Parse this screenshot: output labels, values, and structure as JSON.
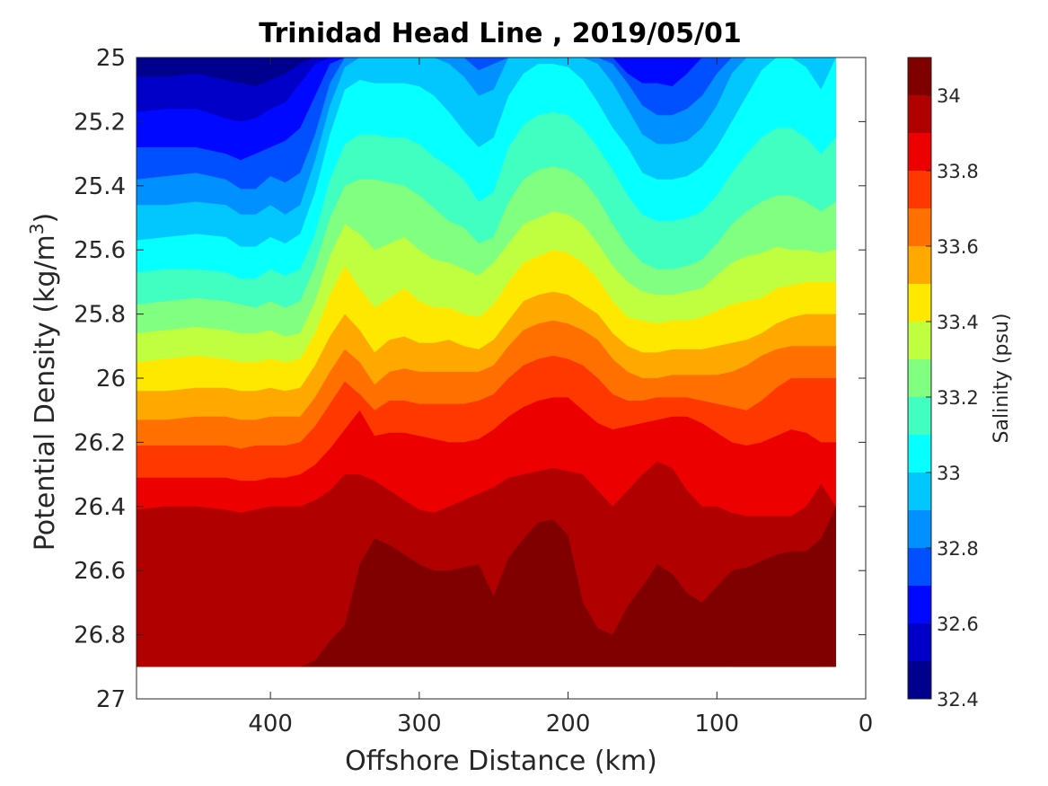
{
  "chart_data": {
    "type": "heatmap",
    "subtype": "filled-contour",
    "title": "Trinidad Head Line , 2019/05/01",
    "xlabel": "Offshore Distance (km)",
    "ylabel_main": "Potential Density (kg/m",
    "ylabel_sup": "3",
    "ylabel_close": ")",
    "xlim": [
      490,
      0
    ],
    "ylim": [
      25,
      27
    ],
    "x_ticks": [
      400,
      300,
      200,
      100,
      0
    ],
    "x_tick_labels": [
      "400",
      "300",
      "200",
      "100",
      "0"
    ],
    "y_ticks": [
      25,
      25.2,
      25.4,
      25.6,
      25.8,
      26,
      26.2,
      26.4,
      26.6,
      26.8,
      27
    ],
    "y_tick_labels": [
      "25",
      "25.2",
      "25.4",
      "25.6",
      "25.8",
      "26",
      "26.2",
      "26.4",
      "26.6",
      "26.8",
      "27"
    ],
    "colorbar": {
      "label": "Salinity (psu)",
      "levels": [
        32.4,
        32.5,
        32.6,
        32.7,
        32.8,
        32.9,
        33.0,
        33.1,
        33.2,
        33.3,
        33.4,
        33.5,
        33.6,
        33.7,
        33.8,
        33.9,
        34.0,
        34.1
      ],
      "tick_values": [
        32.4,
        32.6,
        32.8,
        33,
        33.2,
        33.4,
        33.6,
        33.8,
        34
      ],
      "tick_labels": [
        "32.4",
        "32.6",
        "32.8",
        "33",
        "33.2",
        "33.4",
        "33.6",
        "33.8",
        "34"
      ],
      "colors": [
        "#00008f",
        "#0000c8",
        "#0008ff",
        "#0050ff",
        "#0090ff",
        "#00c8ff",
        "#06ffff",
        "#40ffc0",
        "#80ff80",
        "#c0ff40",
        "#ffe800",
        "#ffa800",
        "#ff7000",
        "#ff3800",
        "#ec0000",
        "#b00000",
        "#800000"
      ]
    },
    "data_x_range": [
      490,
      20
    ],
    "data_y_bottom": 26.9,
    "distances": [
      490,
      470,
      450,
      430,
      420,
      410,
      400,
      390,
      380,
      370,
      360,
      350,
      340,
      330,
      320,
      310,
      300,
      290,
      280,
      270,
      260,
      250,
      240,
      230,
      220,
      210,
      200,
      190,
      180,
      170,
      160,
      150,
      140,
      130,
      120,
      110,
      100,
      90,
      80,
      70,
      60,
      50,
      40,
      30,
      20
    ],
    "isohalines": [
      {
        "value": 32.5,
        "density": [
          25.06,
          25.06,
          25.05,
          25.07,
          25.08,
          25.09,
          25.07,
          25.05,
          25.02,
          25.0,
          25.0,
          25.0,
          25.0,
          25.0,
          25.0,
          25.0,
          25.0,
          25.0,
          25.0,
          25.0,
          25.0,
          25.0,
          25.0,
          25.0,
          25.0,
          25.0,
          25.0,
          25.0,
          25.0,
          25.0,
          25.0,
          25.0,
          25.0,
          25.0,
          25.0,
          25.0,
          25.0,
          25.0,
          25.0,
          25.0,
          25.0,
          25.0,
          25.0,
          25.0,
          25.0
        ]
      },
      {
        "value": 32.6,
        "density": [
          25.17,
          25.16,
          25.16,
          25.19,
          25.2,
          25.19,
          25.16,
          25.14,
          25.08,
          25.02,
          25.0,
          25.0,
          25.0,
          25.0,
          25.0,
          25.0,
          25.0,
          25.0,
          25.0,
          25.0,
          25.0,
          25.0,
          25.0,
          25.0,
          25.0,
          25.0,
          25.0,
          25.0,
          25.0,
          25.0,
          25.0,
          25.0,
          25.0,
          25.0,
          25.0,
          25.0,
          25.0,
          25.0,
          25.0,
          25.0,
          25.0,
          25.0,
          25.0,
          25.0,
          25.0
        ]
      },
      {
        "value": 32.7,
        "density": [
          25.28,
          25.28,
          25.28,
          25.3,
          25.32,
          25.3,
          25.28,
          25.26,
          25.22,
          25.12,
          25.02,
          25.0,
          25.0,
          25.0,
          25.0,
          25.0,
          25.0,
          25.0,
          25.0,
          25.0,
          25.0,
          25.0,
          25.0,
          25.0,
          25.0,
          25.0,
          25.0,
          25.0,
          25.0,
          25.0,
          25.05,
          25.08,
          25.08,
          25.09,
          25.05,
          25.0,
          25.0,
          25.0,
          25.0,
          25.0,
          25.0,
          25.0,
          25.0,
          25.0,
          25.0
        ]
      },
      {
        "value": 32.8,
        "density": [
          25.38,
          25.37,
          25.36,
          25.38,
          25.41,
          25.41,
          25.37,
          25.39,
          25.36,
          25.24,
          25.08,
          25.0,
          25.0,
          25.0,
          25.0,
          25.0,
          25.0,
          25.0,
          25.0,
          25.0,
          25.04,
          25.02,
          25.0,
          25.0,
          25.0,
          25.0,
          25.0,
          25.0,
          25.0,
          25.02,
          25.08,
          25.15,
          25.18,
          25.18,
          25.16,
          25.12,
          25.05,
          25.0,
          25.0,
          25.0,
          25.0,
          25.0,
          25.0,
          25.0,
          25.0
        ]
      },
      {
        "value": 32.9,
        "density": [
          25.46,
          25.46,
          25.45,
          25.46,
          25.49,
          25.49,
          25.46,
          25.49,
          25.46,
          25.32,
          25.15,
          25.03,
          25.0,
          25.0,
          25.0,
          25.0,
          25.0,
          25.0,
          25.02,
          25.06,
          25.12,
          25.1,
          25.0,
          25.0,
          25.0,
          25.0,
          25.0,
          25.0,
          25.02,
          25.08,
          25.16,
          25.24,
          25.27,
          25.27,
          25.26,
          25.22,
          25.15,
          25.05,
          25.0,
          25.0,
          25.0,
          25.0,
          25.0,
          25.0,
          25.0
        ]
      },
      {
        "value": 33.0,
        "density": [
          25.57,
          25.56,
          25.55,
          25.56,
          25.59,
          25.59,
          25.56,
          25.58,
          25.55,
          25.42,
          25.24,
          25.1,
          25.07,
          25.08,
          25.08,
          25.08,
          25.09,
          25.12,
          25.17,
          25.23,
          25.28,
          25.25,
          25.12,
          25.05,
          25.02,
          25.02,
          25.03,
          25.07,
          25.14,
          25.22,
          25.28,
          25.36,
          25.38,
          25.38,
          25.37,
          25.34,
          25.28,
          25.2,
          25.12,
          25.04,
          25.0,
          25.0,
          25.03,
          25.1,
          25.0
        ]
      },
      {
        "value": 33.1,
        "density": [
          25.67,
          25.66,
          25.66,
          25.67,
          25.69,
          25.69,
          25.66,
          25.68,
          25.66,
          25.55,
          25.38,
          25.27,
          25.24,
          25.24,
          25.25,
          25.25,
          25.27,
          25.31,
          25.34,
          25.38,
          25.45,
          25.42,
          25.28,
          25.21,
          25.18,
          25.17,
          25.18,
          25.22,
          25.28,
          25.35,
          25.43,
          25.49,
          25.51,
          25.51,
          25.5,
          25.48,
          25.43,
          25.36,
          25.3,
          25.25,
          25.22,
          25.22,
          25.25,
          25.3,
          25.25
        ]
      },
      {
        "value": 33.2,
        "density": [
          25.77,
          25.76,
          25.75,
          25.76,
          25.77,
          25.78,
          25.76,
          25.78,
          25.76,
          25.65,
          25.5,
          25.4,
          25.38,
          25.38,
          25.39,
          25.4,
          25.43,
          25.47,
          25.51,
          25.53,
          25.58,
          25.56,
          25.45,
          25.38,
          25.35,
          25.34,
          25.35,
          25.38,
          25.44,
          25.52,
          25.59,
          25.64,
          25.66,
          25.66,
          25.65,
          25.63,
          25.58,
          25.52,
          25.48,
          25.45,
          25.43,
          25.43,
          25.45,
          25.48,
          25.45
        ]
      },
      {
        "value": 33.3,
        "density": [
          25.86,
          25.85,
          25.84,
          25.85,
          25.86,
          25.86,
          25.85,
          25.87,
          25.86,
          25.76,
          25.62,
          25.52,
          25.55,
          25.6,
          25.58,
          25.56,
          25.6,
          25.63,
          25.64,
          25.66,
          25.68,
          25.64,
          25.58,
          25.52,
          25.5,
          25.48,
          25.49,
          25.52,
          25.58,
          25.65,
          25.7,
          25.73,
          25.74,
          25.74,
          25.73,
          25.72,
          25.68,
          25.64,
          25.62,
          25.61,
          25.59,
          25.6,
          25.6,
          25.61,
          25.6
        ]
      },
      {
        "value": 33.4,
        "density": [
          25.95,
          25.94,
          25.93,
          25.94,
          25.95,
          25.95,
          25.94,
          25.95,
          25.94,
          25.86,
          25.74,
          25.65,
          25.72,
          25.78,
          25.75,
          25.72,
          25.76,
          25.78,
          25.78,
          25.8,
          25.81,
          25.77,
          25.7,
          25.64,
          25.62,
          25.6,
          25.61,
          25.64,
          25.69,
          25.76,
          25.81,
          25.82,
          25.83,
          25.82,
          25.82,
          25.81,
          25.79,
          25.77,
          25.76,
          25.75,
          25.72,
          25.71,
          25.7,
          25.7,
          25.7
        ]
      },
      {
        "value": 33.5,
        "density": [
          26.04,
          26.04,
          26.03,
          26.03,
          26.04,
          26.04,
          26.03,
          26.04,
          26.03,
          25.96,
          25.87,
          25.8,
          25.85,
          25.92,
          25.88,
          25.87,
          25.89,
          25.89,
          25.88,
          25.9,
          25.91,
          25.88,
          25.82,
          25.76,
          25.74,
          25.73,
          25.74,
          25.77,
          25.8,
          25.86,
          25.9,
          25.92,
          25.92,
          25.91,
          25.91,
          25.91,
          25.9,
          25.89,
          25.88,
          25.86,
          25.83,
          25.81,
          25.8,
          25.8,
          25.8
        ]
      },
      {
        "value": 33.6,
        "density": [
          26.13,
          26.13,
          26.12,
          26.12,
          26.13,
          26.13,
          26.12,
          26.12,
          26.12,
          26.06,
          25.98,
          25.91,
          25.95,
          26.02,
          25.98,
          25.97,
          25.98,
          25.98,
          25.98,
          25.98,
          25.98,
          25.96,
          25.9,
          25.85,
          25.83,
          25.82,
          25.83,
          25.85,
          25.88,
          25.94,
          25.98,
          26.0,
          26.0,
          25.99,
          25.99,
          25.99,
          25.99,
          25.98,
          25.96,
          25.93,
          25.91,
          25.9,
          25.9,
          25.9,
          25.9
        ]
      },
      {
        "value": 33.7,
        "density": [
          26.21,
          26.21,
          26.21,
          26.21,
          26.22,
          26.21,
          26.21,
          26.21,
          26.2,
          26.15,
          26.08,
          26.01,
          26.05,
          26.1,
          26.07,
          26.07,
          26.08,
          26.08,
          26.08,
          26.08,
          26.07,
          26.05,
          26.0,
          25.96,
          25.94,
          25.93,
          25.94,
          25.96,
          26.0,
          26.05,
          26.07,
          26.07,
          26.06,
          26.06,
          26.06,
          26.07,
          26.08,
          26.09,
          26.1,
          26.07,
          26.03,
          26.0,
          26.0,
          26.0,
          26.0
        ]
      },
      {
        "value": 33.8,
        "density": [
          26.31,
          26.31,
          26.31,
          26.31,
          26.32,
          26.32,
          26.31,
          26.31,
          26.3,
          26.27,
          26.22,
          26.16,
          26.1,
          26.18,
          26.17,
          26.17,
          26.18,
          26.19,
          26.2,
          26.2,
          26.19,
          26.16,
          26.12,
          26.09,
          26.07,
          26.06,
          26.06,
          26.1,
          26.14,
          26.16,
          26.15,
          26.14,
          26.13,
          26.12,
          26.12,
          26.14,
          26.17,
          26.2,
          26.21,
          26.2,
          26.18,
          26.16,
          26.17,
          26.2,
          26.2
        ]
      },
      {
        "value": 33.9,
        "density": [
          26.41,
          26.4,
          26.4,
          26.41,
          26.42,
          26.41,
          26.4,
          26.4,
          26.4,
          26.38,
          26.35,
          26.3,
          26.3,
          26.32,
          26.35,
          26.38,
          26.41,
          26.42,
          26.4,
          26.38,
          26.36,
          26.34,
          26.31,
          26.3,
          26.29,
          26.28,
          26.29,
          26.3,
          26.35,
          26.4,
          26.35,
          26.3,
          26.26,
          26.28,
          26.35,
          26.4,
          26.4,
          26.42,
          26.43,
          26.43,
          26.43,
          26.43,
          26.4,
          26.33,
          26.4
        ]
      },
      {
        "value": 34.0,
        "density": [
          26.9,
          26.9,
          26.9,
          26.9,
          26.9,
          26.9,
          26.9,
          26.9,
          26.9,
          26.88,
          26.82,
          26.77,
          26.58,
          26.5,
          26.52,
          26.55,
          26.58,
          26.6,
          26.6,
          26.59,
          26.58,
          26.68,
          26.56,
          26.5,
          26.45,
          26.44,
          26.49,
          26.7,
          26.78,
          26.8,
          26.71,
          26.65,
          26.58,
          26.61,
          26.67,
          26.7,
          26.65,
          26.6,
          26.59,
          26.57,
          26.55,
          26.54,
          26.54,
          26.5,
          26.4
        ]
      },
      {
        "value": 34.1,
        "density": [
          26.9,
          26.9,
          26.9,
          26.9,
          26.9,
          26.9,
          26.9,
          26.9,
          26.9,
          26.9,
          26.9,
          26.9,
          26.9,
          26.9,
          26.9,
          26.9,
          26.9,
          26.9,
          26.9,
          26.9,
          26.9,
          26.9,
          26.9,
          26.9,
          26.9,
          26.9,
          26.9,
          26.9,
          26.9,
          26.9,
          26.9,
          26.9,
          26.9,
          26.9,
          26.9,
          26.9,
          26.9,
          26.9,
          26.89,
          26.87,
          26.85,
          26.82,
          26.83,
          26.9,
          26.9
        ]
      }
    ]
  }
}
